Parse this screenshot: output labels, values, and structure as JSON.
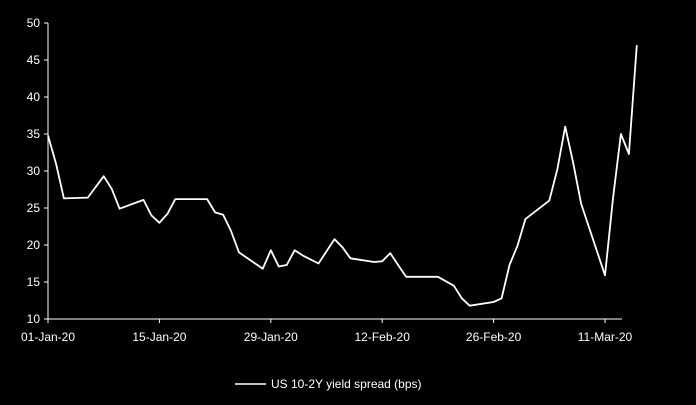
{
  "chart_data": {
    "type": "line",
    "title": "",
    "xlabel": "",
    "ylabel": "",
    "ylim": [
      10,
      50
    ],
    "yticks": [
      10,
      15,
      20,
      25,
      30,
      35,
      40,
      45,
      50
    ],
    "xticks": [
      {
        "date": "2020-01-01",
        "label": "01-Jan-20"
      },
      {
        "date": "2020-01-15",
        "label": "15-Jan-20"
      },
      {
        "date": "2020-01-29",
        "label": "29-Jan-20"
      },
      {
        "date": "2020-02-12",
        "label": "12-Feb-20"
      },
      {
        "date": "2020-02-26",
        "label": "26-Feb-20"
      },
      {
        "date": "2020-03-11",
        "label": "11-Mar-20"
      }
    ],
    "xlim": [
      "2020-01-01",
      "2020-03-13"
    ],
    "grid": false,
    "legend_position": "bottom-center",
    "colors": {
      "background": "#000000",
      "line": "#ffffff",
      "axis": "#ffffff"
    },
    "series": [
      {
        "name": "US 10-2Y yield spread (bps)",
        "points": [
          [
            "2020-01-01",
            34.8
          ],
          [
            "2020-01-02",
            31.0
          ],
          [
            "2020-01-03",
            26.3
          ],
          [
            "2020-01-06",
            26.4
          ],
          [
            "2020-01-08",
            29.3
          ],
          [
            "2020-01-09",
            27.6
          ],
          [
            "2020-01-10",
            24.9
          ],
          [
            "2020-01-13",
            26.1
          ],
          [
            "2020-01-14",
            24.0
          ],
          [
            "2020-01-15",
            23.0
          ],
          [
            "2020-01-16",
            24.2
          ],
          [
            "2020-01-17",
            26.2
          ],
          [
            "2020-01-21",
            26.2
          ],
          [
            "2020-01-22",
            24.4
          ],
          [
            "2020-01-23",
            24.1
          ],
          [
            "2020-01-24",
            21.9
          ],
          [
            "2020-01-25",
            19.0
          ],
          [
            "2020-01-28",
            16.8
          ],
          [
            "2020-01-29",
            19.3
          ],
          [
            "2020-01-30",
            17.1
          ],
          [
            "2020-01-31",
            17.3
          ],
          [
            "2020-02-01",
            19.3
          ],
          [
            "2020-02-02",
            18.6
          ],
          [
            "2020-02-04",
            17.5
          ],
          [
            "2020-02-06",
            20.8
          ],
          [
            "2020-02-07",
            19.7
          ],
          [
            "2020-02-08",
            18.2
          ],
          [
            "2020-02-11",
            17.7
          ],
          [
            "2020-02-12",
            17.8
          ],
          [
            "2020-02-13",
            18.9
          ],
          [
            "2020-02-14",
            17.3
          ],
          [
            "2020-02-15",
            15.7
          ],
          [
            "2020-02-19",
            15.7
          ],
          [
            "2020-02-21",
            14.5
          ],
          [
            "2020-02-22",
            12.8
          ],
          [
            "2020-02-23",
            11.8
          ],
          [
            "2020-02-26",
            12.3
          ],
          [
            "2020-02-27",
            12.8
          ],
          [
            "2020-02-28",
            17.3
          ],
          [
            "2020-02-29",
            19.9
          ],
          [
            "2020-03-01",
            23.5
          ],
          [
            "2020-03-04",
            26.0
          ],
          [
            "2020-03-05",
            30.2
          ],
          [
            "2020-03-06",
            36.0
          ],
          [
            "2020-03-07",
            31.1
          ],
          [
            "2020-03-08",
            25.6
          ],
          [
            "2020-03-11",
            15.9
          ],
          [
            "2020-03-12",
            26.3
          ],
          [
            "2020-03-13",
            35.0
          ],
          [
            "2020-03-14",
            32.3
          ],
          [
            "2020-03-15",
            47.0
          ]
        ]
      }
    ]
  }
}
